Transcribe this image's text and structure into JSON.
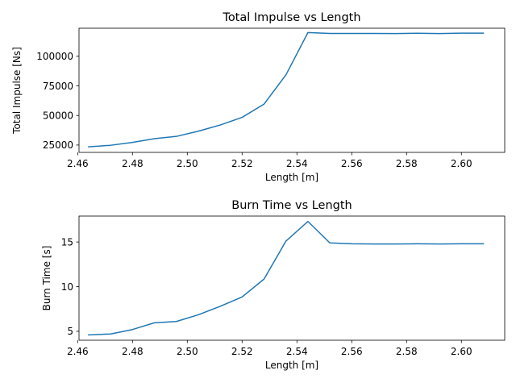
{
  "chart_data": [
    {
      "type": "line",
      "title": "Total Impulse vs Length",
      "xlabel": "Length [m]",
      "ylabel": "Total Impulse [Ns]",
      "xlim": [
        2.4605,
        2.6158
      ],
      "ylim": [
        18800,
        123700
      ],
      "xticks": [
        2.46,
        2.48,
        2.5,
        2.52,
        2.54,
        2.56,
        2.58,
        2.6
      ],
      "xtick_labels": [
        "2.46",
        "2.48",
        "2.50",
        "2.52",
        "2.54",
        "2.56",
        "2.58",
        "2.60"
      ],
      "yticks": [
        25000,
        50000,
        75000,
        100000
      ],
      "ytick_labels": [
        "25000",
        "50000",
        "75000",
        "100000"
      ],
      "grid": false,
      "color": "#1f77b4",
      "x": [
        2.464,
        2.472,
        2.48,
        2.488,
        2.496,
        2.504,
        2.512,
        2.52,
        2.528,
        2.536,
        2.544,
        2.552,
        2.56,
        2.568,
        2.576,
        2.584,
        2.592,
        2.6,
        2.608
      ],
      "y": [
        23500,
        24800,
        27200,
        30400,
        32300,
        36700,
        41900,
        48400,
        59600,
        84300,
        120000,
        119300,
        119300,
        119300,
        119200,
        119400,
        119200,
        119500,
        119500
      ]
    },
    {
      "type": "line",
      "title": "Burn Time vs Length",
      "xlabel": "Length [m]",
      "ylabel": "Burn Time [s]",
      "xlim": [
        2.4605,
        2.6158
      ],
      "ylim": [
        4.0,
        17.9
      ],
      "xticks": [
        2.46,
        2.48,
        2.5,
        2.52,
        2.54,
        2.56,
        2.58,
        2.6
      ],
      "xtick_labels": [
        "2.46",
        "2.48",
        "2.50",
        "2.52",
        "2.54",
        "2.56",
        "2.58",
        "2.60"
      ],
      "yticks": [
        5,
        10,
        15
      ],
      "ytick_labels": [
        "5",
        "10",
        "15"
      ],
      "grid": false,
      "color": "#1f77b4",
      "x": [
        2.464,
        2.472,
        2.48,
        2.488,
        2.496,
        2.504,
        2.512,
        2.52,
        2.528,
        2.536,
        2.544,
        2.552,
        2.56,
        2.568,
        2.576,
        2.584,
        2.592,
        2.6,
        2.608
      ],
      "y": [
        4.6,
        4.7,
        5.2,
        5.95,
        6.1,
        6.85,
        7.8,
        8.85,
        10.85,
        15.1,
        17.3,
        14.9,
        14.8,
        14.78,
        14.77,
        14.8,
        14.78,
        14.8,
        14.8
      ]
    }
  ]
}
